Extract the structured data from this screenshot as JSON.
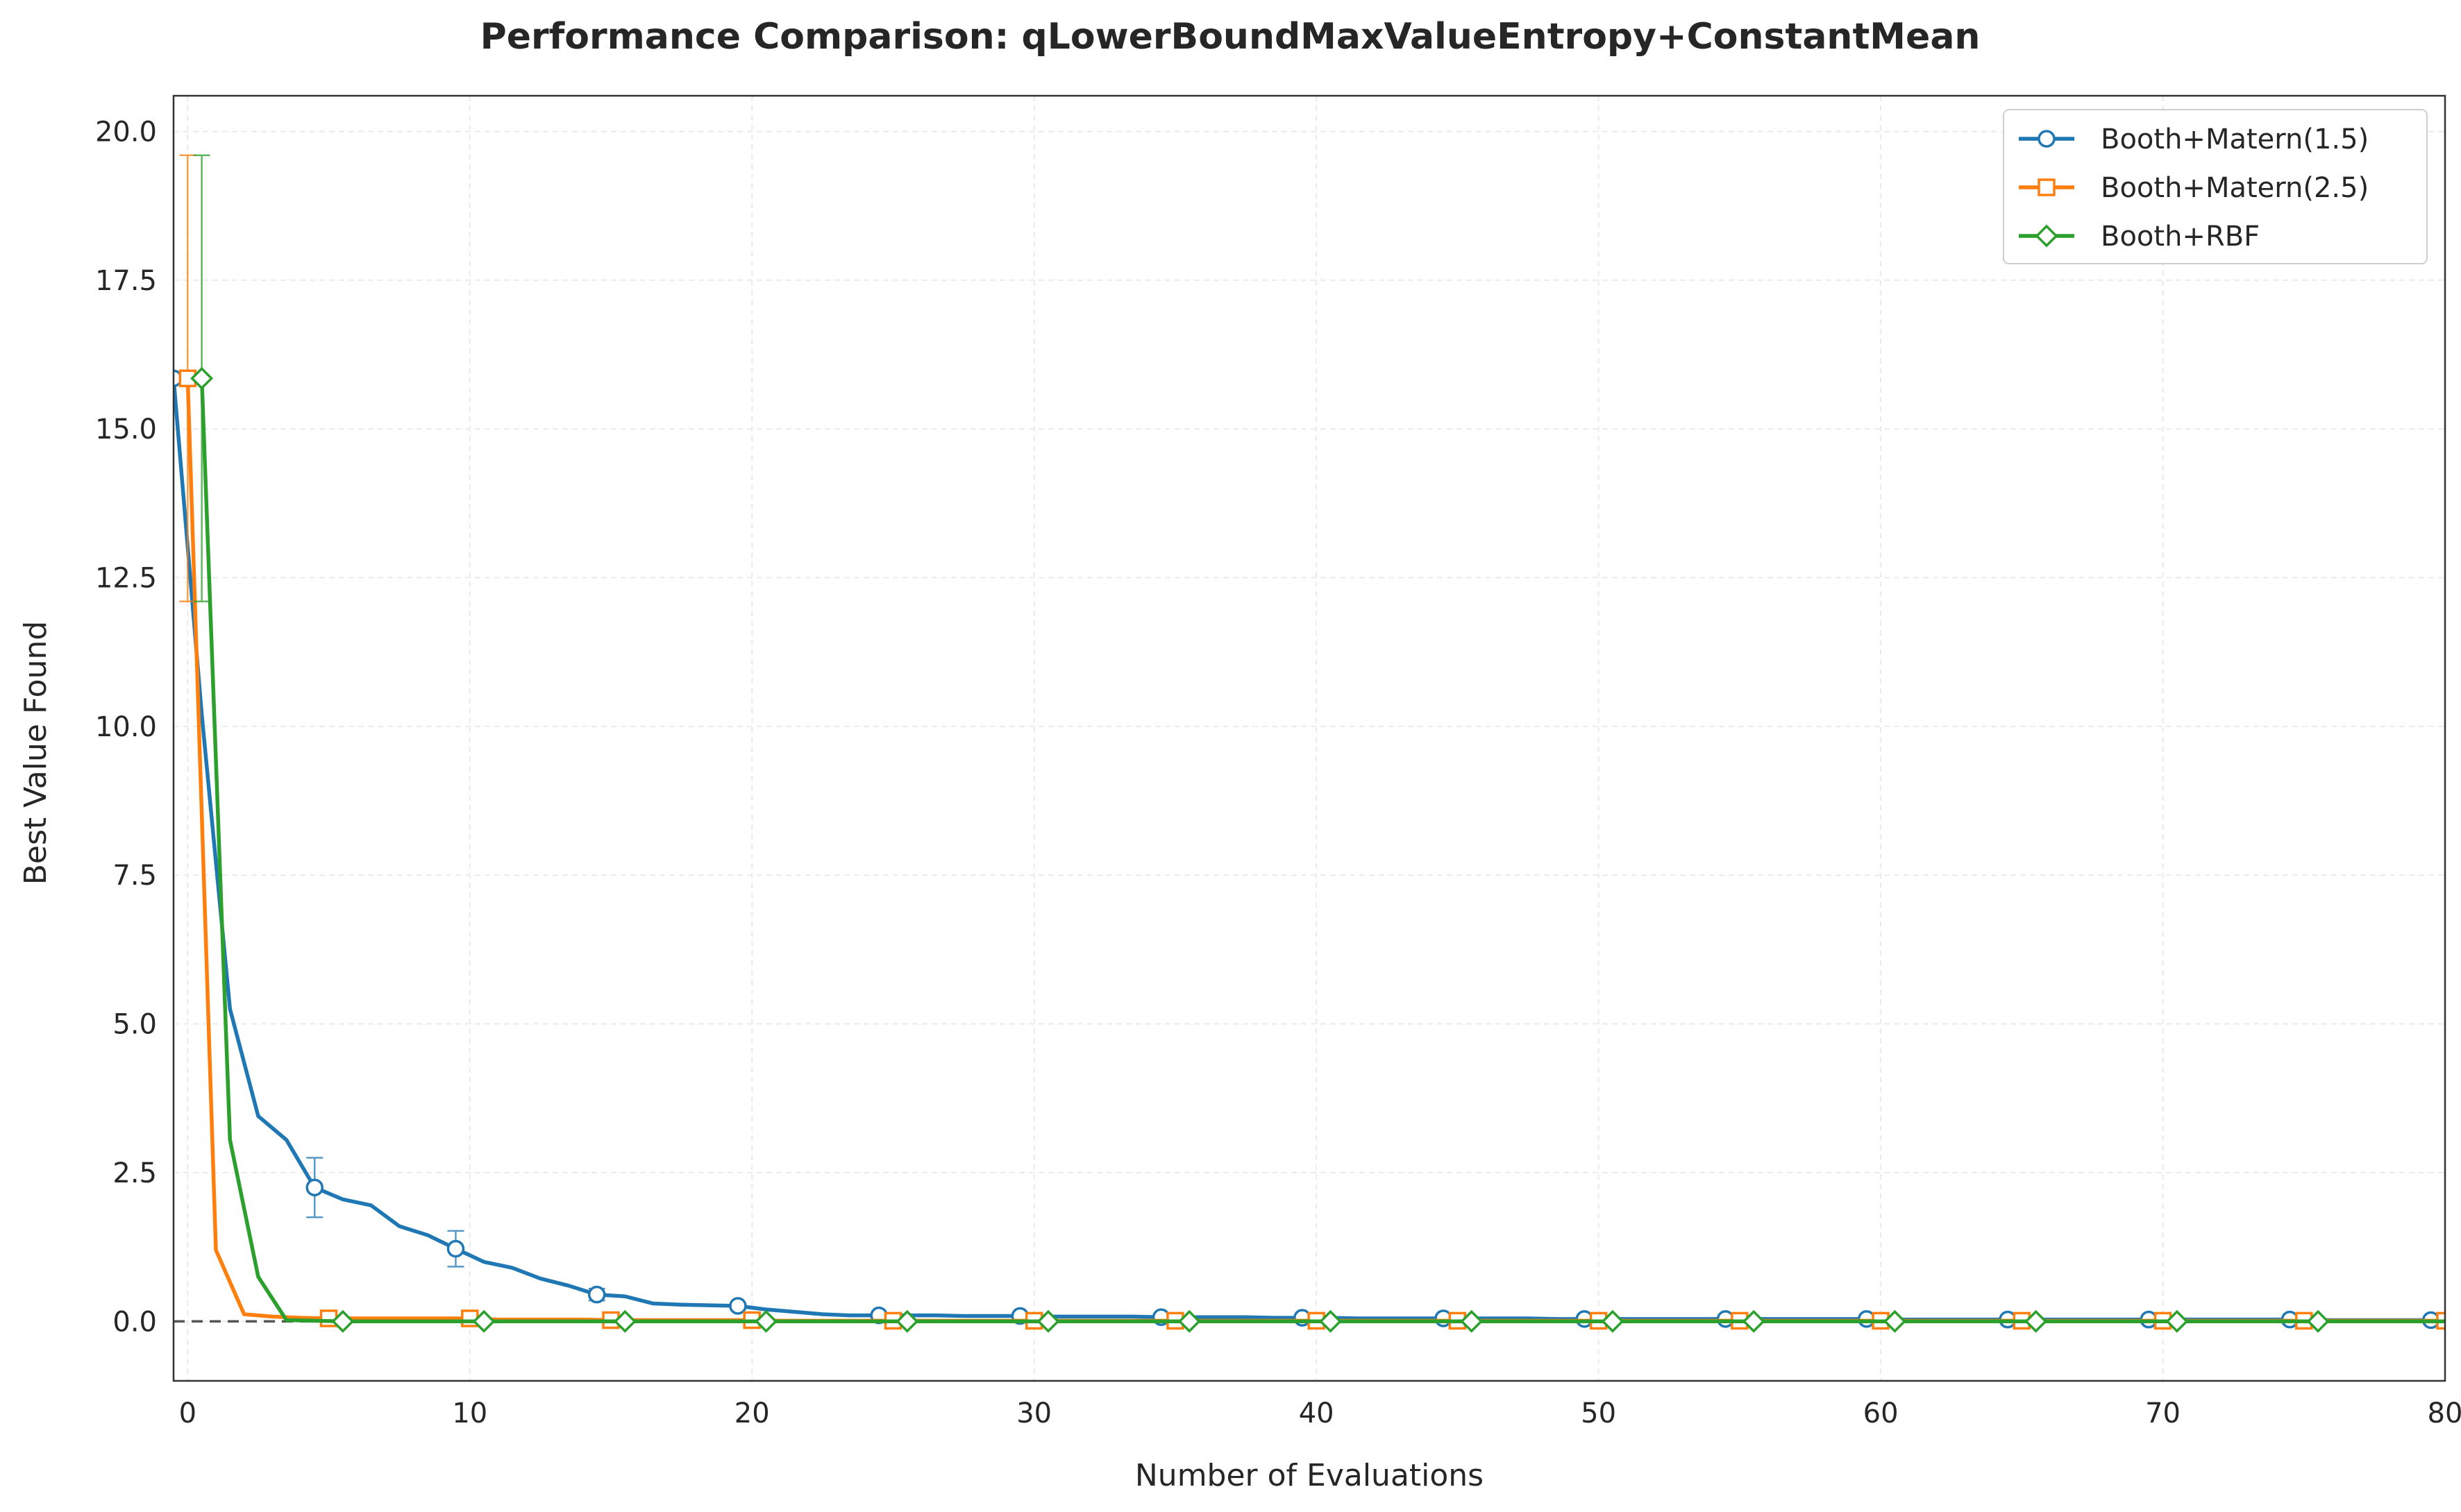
{
  "chart_data": {
    "type": "line",
    "title": "Performance Comparison: qLowerBoundMaxValueEntropy+ConstantMean",
    "xlabel": "Number of Evaluations",
    "ylabel": "Best Value Found",
    "xlim": [
      -0.5,
      80
    ],
    "ylim": [
      -1.0,
      20.6
    ],
    "xticks": [
      0,
      10,
      20,
      30,
      40,
      50,
      60,
      70,
      80
    ],
    "yticks": [
      0.0,
      2.5,
      5.0,
      7.5,
      10.0,
      12.5,
      15.0,
      17.5,
      20.0
    ],
    "xtick_labels": [
      "0",
      "10",
      "20",
      "30",
      "40",
      "50",
      "60",
      "70",
      "80"
    ],
    "ytick_labels": [
      "0.0",
      "2.5",
      "5.0",
      "7.5",
      "10.0",
      "12.5",
      "15.0",
      "17.5",
      "20.0"
    ],
    "grid": true,
    "legend_position": "top-right",
    "reference_line": {
      "y": 0.0,
      "style": "dashed",
      "color": "#555555"
    },
    "series": [
      {
        "name": "Booth+Matern(1.5)",
        "color": "#1f77b4",
        "marker": "circle",
        "x_offset": -0.5,
        "values": [
          15.85,
          10.2,
          5.25,
          3.45,
          3.05,
          2.25,
          2.05,
          1.95,
          1.6,
          1.45,
          1.22,
          1.0,
          0.9,
          0.72,
          0.6,
          0.45,
          0.42,
          0.3,
          0.28,
          0.27,
          0.26,
          0.2,
          0.16,
          0.12,
          0.1,
          0.1,
          0.1,
          0.1,
          0.09,
          0.09,
          0.09,
          0.08,
          0.08,
          0.08,
          0.08,
          0.07,
          0.07,
          0.07,
          0.07,
          0.06,
          0.06,
          0.06,
          0.05,
          0.05,
          0.05,
          0.05,
          0.05,
          0.05,
          0.05,
          0.04,
          0.04,
          0.04,
          0.04,
          0.04,
          0.04,
          0.04,
          0.04,
          0.04,
          0.04,
          0.04,
          0.04,
          0.03,
          0.03,
          0.03,
          0.03,
          0.03,
          0.03,
          0.03,
          0.03,
          0.03,
          0.03,
          0.03,
          0.03,
          0.03,
          0.03,
          0.03,
          0.02,
          0.02,
          0.02,
          0.02,
          0.02
        ],
        "marker_indices": [
          0,
          5,
          10,
          15,
          20,
          25,
          30,
          35,
          40,
          45,
          50,
          55,
          60,
          65,
          70,
          75,
          80
        ],
        "error_bars": [
          {
            "index": 5,
            "low": 1.75,
            "high": 2.75
          },
          {
            "index": 10,
            "low": 0.92,
            "high": 1.52
          },
          {
            "index": 15,
            "low": 0.35,
            "high": 0.55
          }
        ]
      },
      {
        "name": "Booth+Matern(2.5)",
        "color": "#ff7f0e",
        "marker": "square",
        "x_offset": 0.0,
        "values": [
          15.85,
          1.2,
          0.12,
          0.08,
          0.06,
          0.05,
          0.05,
          0.05,
          0.05,
          0.05,
          0.05,
          0.03,
          0.03,
          0.03,
          0.03,
          0.02,
          0.02,
          0.02,
          0.02,
          0.02,
          0.02,
          0.01,
          0.01,
          0.01,
          0.01,
          0.01,
          0.01,
          0.01,
          0.01,
          0.01,
          0.01,
          0.01,
          0.01,
          0.01,
          0.01,
          0.01,
          0.01,
          0.01,
          0.01,
          0.01,
          0.01,
          0.01,
          0.01,
          0.01,
          0.01,
          0.01,
          0.01,
          0.01,
          0.01,
          0.01,
          0.01,
          0.01,
          0.01,
          0.01,
          0.01,
          0.01,
          0.01,
          0.01,
          0.01,
          0.01,
          0.01,
          0.01,
          0.01,
          0.01,
          0.01,
          0.01,
          0.01,
          0.01,
          0.01,
          0.01,
          0.01,
          0.01,
          0.01,
          0.01,
          0.01,
          0.01,
          0.01,
          0.01,
          0.01,
          0.01,
          0.01
        ],
        "marker_indices": [
          0,
          5,
          10,
          15,
          20,
          25,
          30,
          35,
          40,
          45,
          50,
          55,
          60,
          65,
          70,
          75,
          80
        ],
        "error_bars": [
          {
            "index": 0,
            "low": 12.1,
            "high": 19.6
          }
        ]
      },
      {
        "name": "Booth+RBF",
        "color": "#2ca02c",
        "marker": "diamond",
        "x_offset": 0.5,
        "values": [
          15.85,
          3.05,
          0.75,
          0.02,
          0.01,
          0.0,
          0.0,
          0.0,
          0.0,
          0.0,
          0.0,
          0.0,
          0.0,
          0.0,
          0.0,
          0.0,
          0.0,
          0.0,
          0.0,
          0.0,
          0.0,
          0.0,
          0.0,
          0.0,
          0.0,
          0.0,
          0.0,
          0.0,
          0.0,
          0.0,
          0.0,
          0.0,
          0.0,
          0.0,
          0.0,
          0.0,
          0.0,
          0.0,
          0.0,
          0.0,
          0.0,
          0.0,
          0.0,
          0.0,
          0.0,
          0.0,
          0.0,
          0.0,
          0.0,
          0.0,
          0.0,
          0.0,
          0.0,
          0.0,
          0.0,
          0.0,
          0.0,
          0.0,
          0.0,
          0.0,
          0.0,
          0.0,
          0.0,
          0.0,
          0.0,
          0.0,
          0.0,
          0.0,
          0.0,
          0.0,
          0.0,
          0.0,
          0.0,
          0.0,
          0.0,
          0.0,
          0.0,
          0.0,
          0.0,
          0.0,
          0.0
        ],
        "marker_indices": [
          0,
          5,
          10,
          15,
          20,
          25,
          30,
          35,
          40,
          45,
          50,
          55,
          60,
          65,
          70,
          75,
          80
        ],
        "error_bars": [
          {
            "index": 0,
            "low": 12.1,
            "high": 19.6
          }
        ]
      }
    ]
  }
}
